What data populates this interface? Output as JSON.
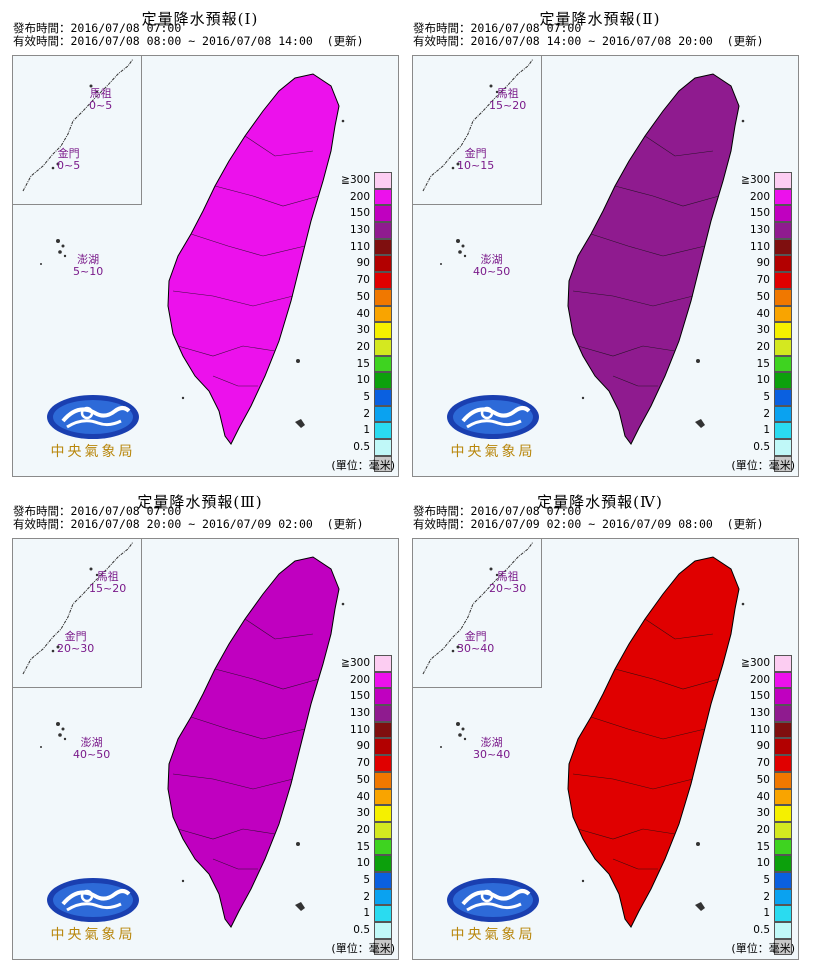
{
  "legend": {
    "labels": [
      "≧300",
      "200",
      "150",
      "130",
      "110",
      "90",
      "70",
      "50",
      "40",
      "30",
      "20",
      "15",
      "10",
      "5",
      "2",
      "1",
      "0.5"
    ],
    "colors": [
      "#fccdf2",
      "#ec11ec",
      "#c000c0",
      "#8f1b8f",
      "#7f0f0f",
      "#b20000",
      "#e00000",
      "#f07800",
      "#f9a400",
      "#f5f000",
      "#d4e820",
      "#3ed320",
      "#0ca00c",
      "#0a60e0",
      "#0aa2f0",
      "#2adbf0",
      "#c0f8f8",
      "#c8c8c8"
    ],
    "unit": "(單位：毫米)"
  },
  "logo": {
    "text": "中央氣象局"
  },
  "panels": [
    {
      "title": "定量降水預報(Ⅰ)",
      "issued": "發布時間：2016/07/08 07:00",
      "valid": "有效時間：2016/07/08 08:00 ~ 2016/07/08 14:00  (更新)",
      "islands": {
        "matsu": {
          "name": "馬祖",
          "range": "0~5"
        },
        "kinmen": {
          "name": "金門",
          "range": "0~5"
        },
        "penghu": {
          "name": "澎湖",
          "range": "5~10"
        }
      },
      "bands": [
        "#35c0f0",
        "#2a90e0",
        "#3ed320",
        "#e00000",
        "#b20000",
        "#c000c0",
        "#ec11ec"
      ]
    },
    {
      "title": "定量降水預報(Ⅱ)",
      "issued": "發布時間：2016/07/08 07:00",
      "valid": "有效時間：2016/07/08 14:00 ~ 2016/07/08 20:00  (更新)",
      "islands": {
        "matsu": {
          "name": "馬祖",
          "range": "15~20"
        },
        "kinmen": {
          "name": "金門",
          "range": "10~15"
        },
        "penghu": {
          "name": "澎湖",
          "range": "40~50"
        }
      },
      "bands": [
        "#2a90e0",
        "#3ed320",
        "#d4e820",
        "#f9a400",
        "#e00000",
        "#b20000",
        "#8f1b8f"
      ]
    },
    {
      "title": "定量降水預報(Ⅲ)",
      "issued": "發布時間：2016/07/08 07:00",
      "valid": "有效時間：2016/07/08 20:00 ~ 2016/07/09 02:00  (更新)",
      "islands": {
        "matsu": {
          "name": "馬祖",
          "range": "15~20"
        },
        "kinmen": {
          "name": "金門",
          "range": "20~30"
        },
        "penghu": {
          "name": "澎湖",
          "range": "40~50"
        }
      },
      "bands": [
        "#2a90e0",
        "#3ed320",
        "#d4e820",
        "#f9a400",
        "#f07800",
        "#e00000",
        "#c000c0"
      ]
    },
    {
      "title": "定量降水預報(Ⅳ)",
      "issued": "發布時間：2016/07/08 07:00",
      "valid": "有效時間：2016/07/09 02:00 ~ 2016/07/09 08:00  (更新)",
      "islands": {
        "matsu": {
          "name": "馬祖",
          "range": "20~30"
        },
        "kinmen": {
          "name": "金門",
          "range": "30~40"
        },
        "penghu": {
          "name": "澎湖",
          "range": "30~40"
        }
      },
      "bands": [
        "#2a90e0",
        "#3ed320",
        "#0ca00c",
        "#d4e820",
        "#f9a400",
        "#f07800",
        "#e00000"
      ]
    }
  ]
}
